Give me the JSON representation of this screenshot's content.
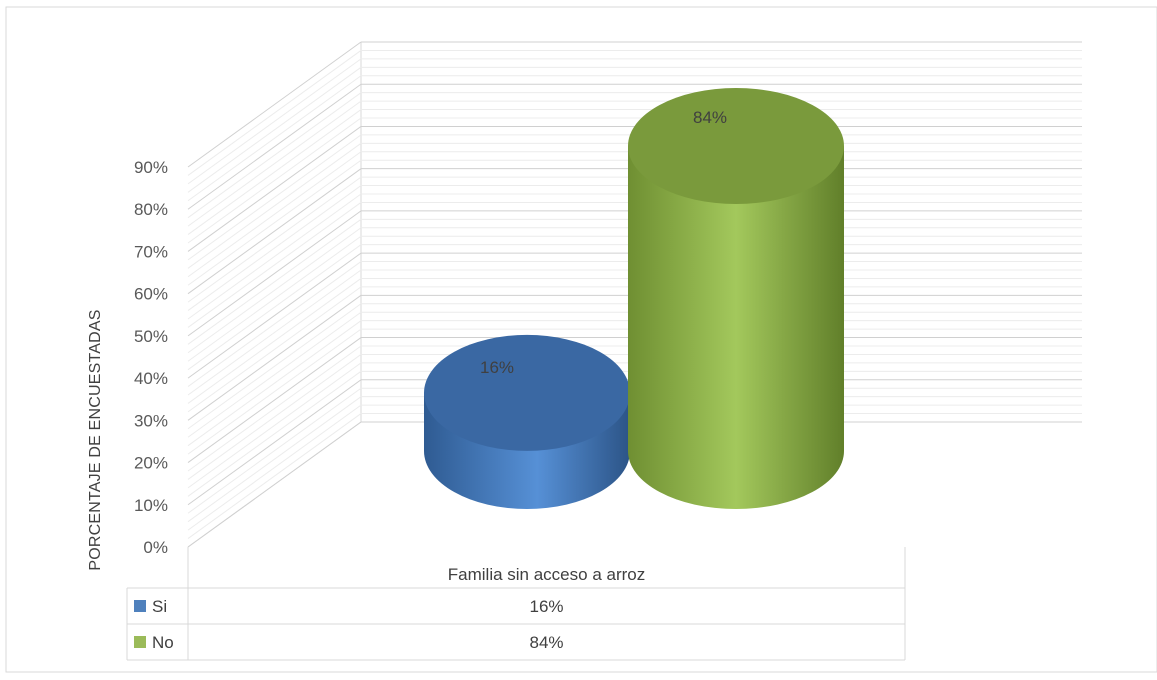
{
  "chart_data": {
    "type": "bar",
    "style": "3d-cylinder",
    "categories": [
      "Familia sin acceso a arroz"
    ],
    "series": [
      {
        "name": "Si",
        "values": [
          16
        ],
        "color": "#4F81BD",
        "data_label": "16%"
      },
      {
        "name": "No",
        "values": [
          84
        ],
        "color": "#9BBB59",
        "data_label": "84%"
      }
    ],
    "ylabel": "PORCENTAJE DE ENCUESTADAS",
    "ylim": [
      0,
      90
    ],
    "yticks": [
      0,
      10,
      20,
      30,
      40,
      50,
      60,
      70,
      80,
      90
    ],
    "ytick_labels": [
      "0%",
      "10%",
      "20%",
      "30%",
      "40%",
      "50%",
      "60%",
      "70%",
      "80%",
      "90%"
    ],
    "grid": true,
    "data_table": {
      "rows": [
        {
          "legend": "Si",
          "value": "16%"
        },
        {
          "legend": "No",
          "value": "84%"
        }
      ]
    }
  }
}
